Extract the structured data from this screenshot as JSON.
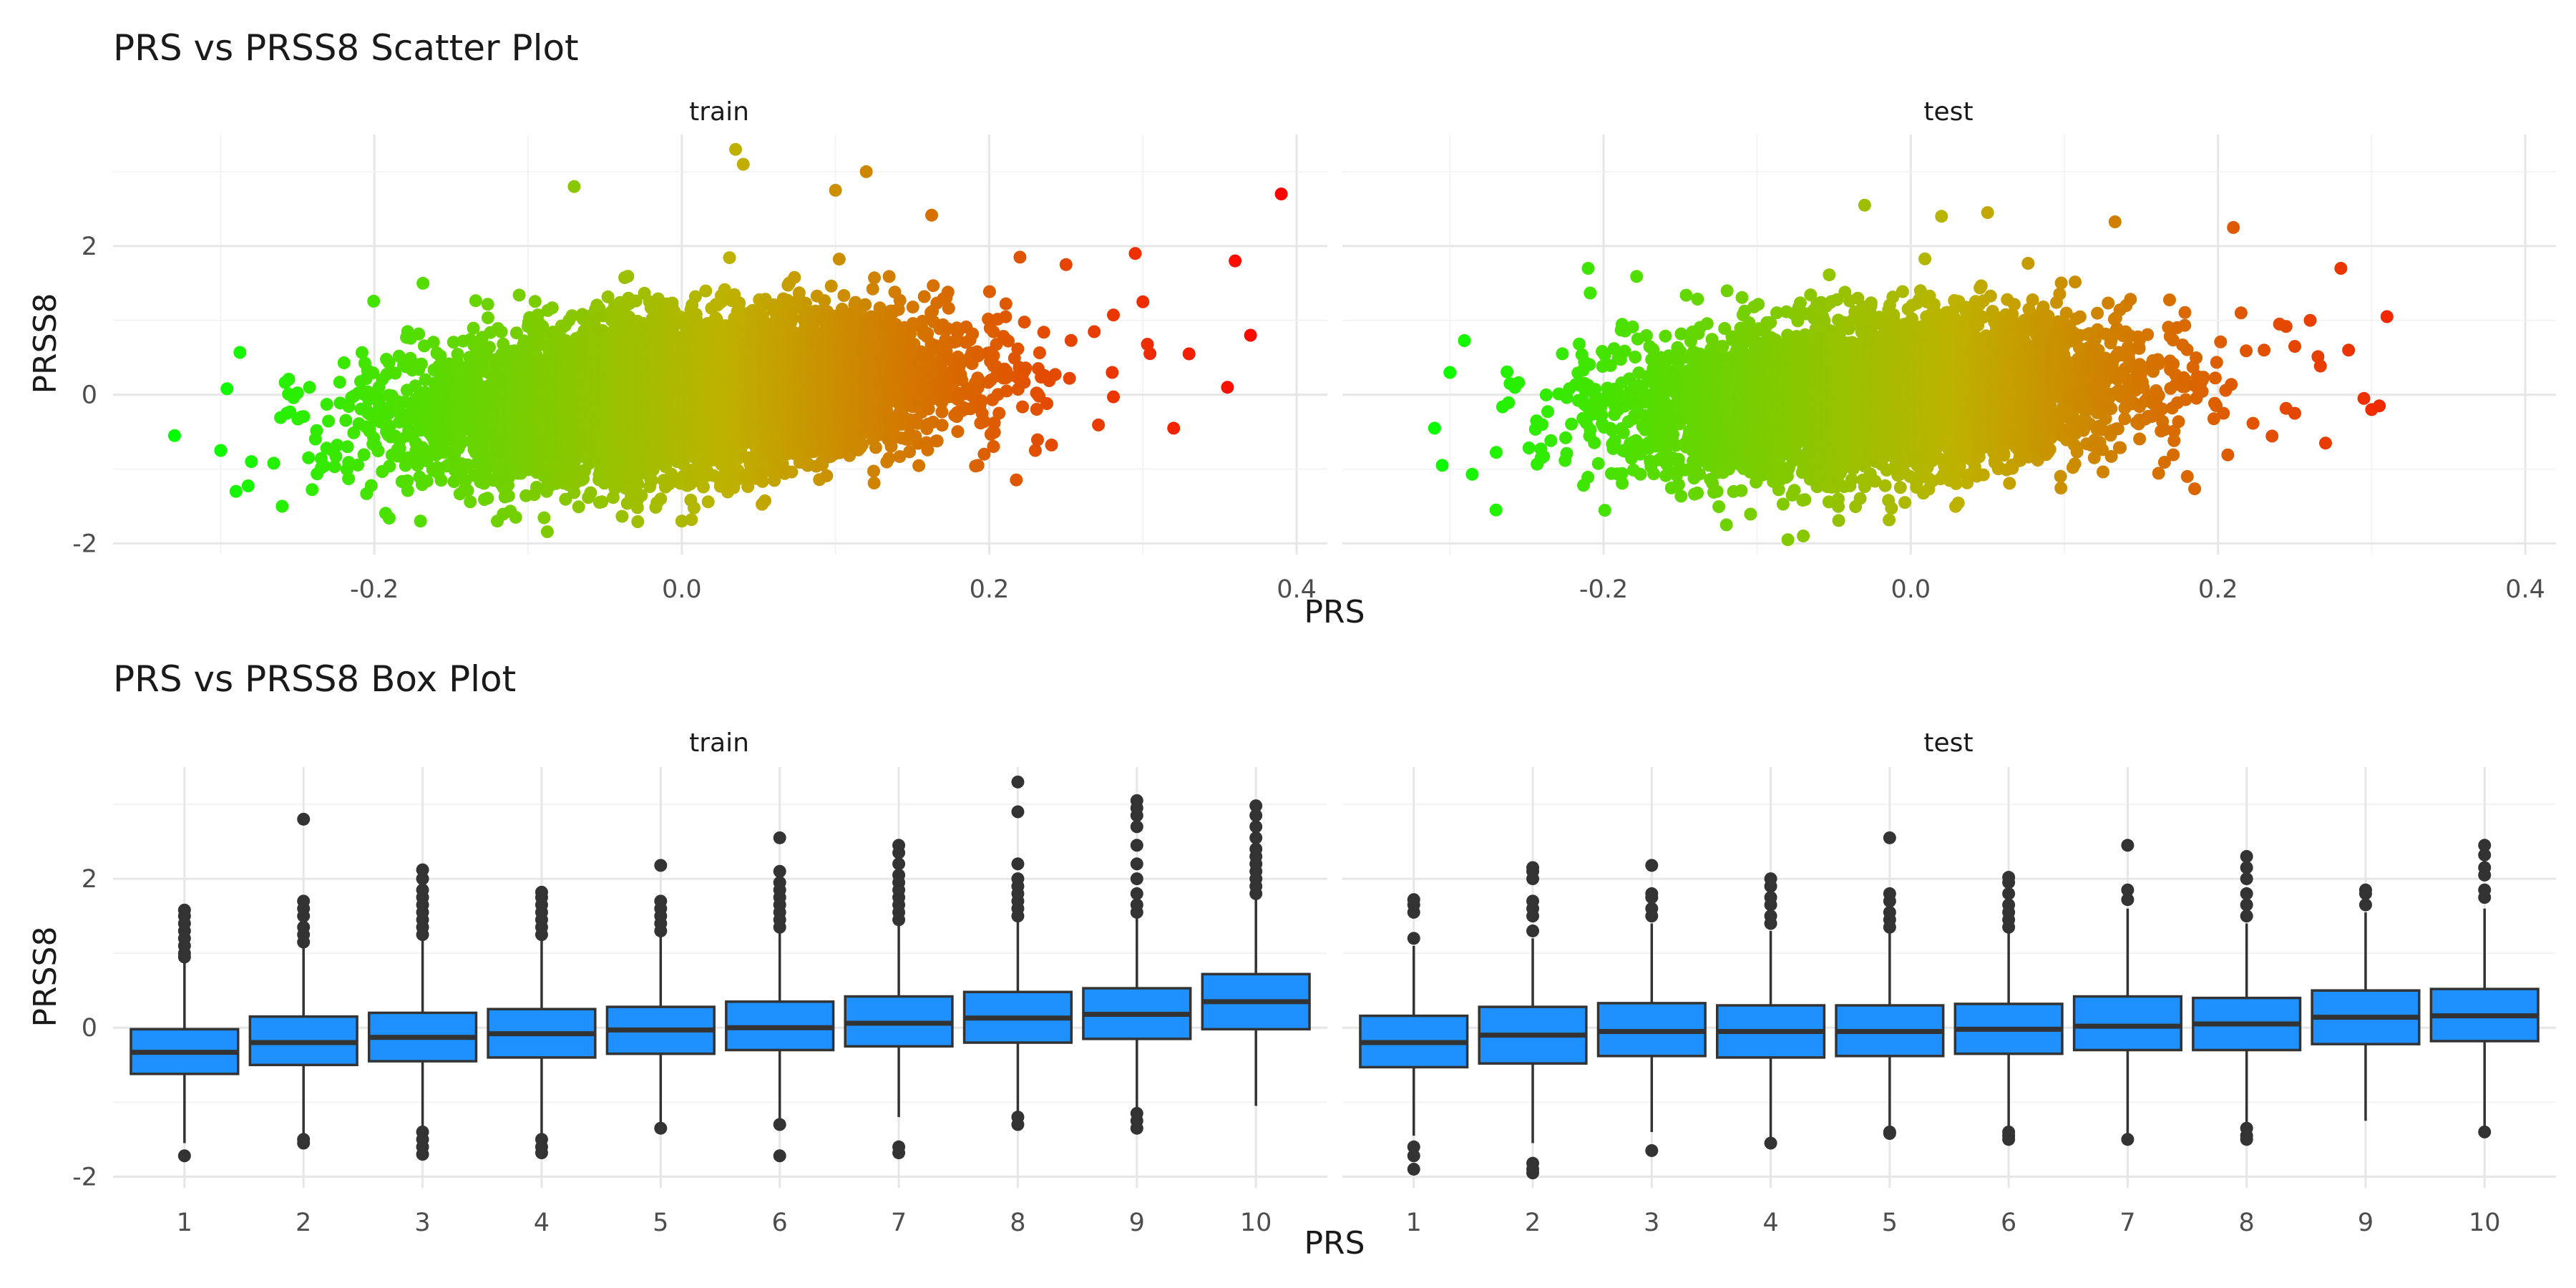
{
  "charts": {
    "scatter_title": "PRS vs PRSS8 Scatter Plot",
    "box_title": "PRS vs PRSS8 Box Plot",
    "xlabel": "PRS",
    "ylabel": "PRSS8",
    "facet_train": "train",
    "facet_test": "test"
  },
  "colors": {
    "gradient_low": "#00ff00",
    "gradient_high": "#ff0000",
    "box_fill": "#1e90ff",
    "box_line": "#333333",
    "grid": "#e6e6e6"
  },
  "chart_data": [
    {
      "type": "scatter",
      "title": "PRS vs PRSS8 Scatter Plot",
      "xlabel": "PRS",
      "ylabel": "PRSS8",
      "facets": [
        "train",
        "test"
      ],
      "xlim": [
        -0.37,
        0.42
      ],
      "ylim": [
        -2.15,
        3.5
      ],
      "x_ticks": [
        "-0.2",
        "0.0",
        "0.2",
        "0.4"
      ],
      "y_ticks": [
        "-2",
        "0",
        "2"
      ],
      "color_scale": {
        "low": "#00ff00",
        "high": "#ff0000",
        "by": "PRS"
      },
      "grid": true,
      "density": {
        "train": {
          "center_x": 0.0,
          "sd_x": 0.085,
          "center_y": 0.0,
          "slope": 4.2,
          "sd_y": 0.5
        },
        "test": {
          "center_x": -0.02,
          "sd_x": 0.08,
          "center_y": 0.0,
          "slope": 3.0,
          "sd_y": 0.5
        }
      },
      "outliers": {
        "train": [
          [
            -0.33,
            -0.55
          ],
          [
            0.39,
            2.7
          ],
          [
            0.37,
            0.8
          ],
          [
            0.36,
            1.8
          ],
          [
            0.355,
            0.1
          ],
          [
            0.33,
            0.55
          ],
          [
            0.32,
            -0.45
          ],
          [
            0.3,
            1.25
          ],
          [
            0.295,
            1.9
          ],
          [
            0.28,
            0.3
          ],
          [
            0.25,
            1.75
          ],
          [
            0.23,
            -0.75
          ],
          [
            0.22,
            1.85
          ],
          [
            0.12,
            3.0
          ],
          [
            0.035,
            3.3
          ],
          [
            0.04,
            3.1
          ],
          [
            -0.07,
            2.8
          ],
          [
            0.1,
            2.75
          ],
          [
            -0.29,
            -1.3
          ],
          [
            -0.3,
            -0.75
          ],
          [
            -0.28,
            -0.9
          ],
          [
            -0.26,
            -1.5
          ],
          [
            -0.17,
            -1.7
          ],
          [
            -0.12,
            -1.7
          ],
          [
            0.0,
            -1.7
          ]
        ],
        "test": [
          [
            -0.3,
            0.3
          ],
          [
            -0.31,
            -0.45
          ],
          [
            -0.305,
            -0.95
          ],
          [
            -0.27,
            -1.55
          ],
          [
            -0.21,
            1.7
          ],
          [
            0.21,
            2.25
          ],
          [
            0.215,
            1.1
          ],
          [
            0.28,
            1.7
          ],
          [
            0.285,
            0.6
          ],
          [
            0.31,
            1.05
          ],
          [
            0.305,
            -0.15
          ],
          [
            0.295,
            -0.05
          ],
          [
            0.3,
            -0.2
          ],
          [
            0.25,
            0.65
          ],
          [
            0.27,
            -0.65
          ],
          [
            0.24,
            0.95
          ],
          [
            0.26,
            1.0
          ],
          [
            0.23,
            0.6
          ],
          [
            0.25,
            -0.25
          ],
          [
            -0.07,
            -1.9
          ],
          [
            -0.08,
            -1.95
          ],
          [
            -0.12,
            -1.75
          ],
          [
            0.05,
            2.45
          ],
          [
            -0.03,
            2.55
          ],
          [
            0.02,
            2.4
          ],
          [
            -0.24,
            -0.4
          ],
          [
            0.18,
            -1.1
          ]
        ]
      }
    },
    {
      "type": "box",
      "title": "PRS vs PRSS8 Box Plot",
      "xlabel": "PRS",
      "ylabel": "PRSS8",
      "categories": [
        "1",
        "2",
        "3",
        "4",
        "5",
        "6",
        "7",
        "8",
        "9",
        "10"
      ],
      "ylim": [
        -2.15,
        3.5
      ],
      "y_ticks": [
        "-2",
        "0",
        "2"
      ],
      "grid": true,
      "facets": [
        {
          "name": "train",
          "boxes": [
            {
              "q1": -0.62,
              "median": -0.33,
              "q3": -0.02,
              "lower": -1.55,
              "upper": 0.9,
              "outliers": [
                -1.72,
                0.95,
                1.0,
                1.1,
                1.2,
                1.3,
                1.4,
                1.5,
                1.58
              ]
            },
            {
              "q1": -0.5,
              "median": -0.2,
              "q3": 0.15,
              "lower": -1.45,
              "upper": 1.1,
              "outliers": [
                -1.5,
                -1.55,
                1.15,
                1.25,
                1.35,
                1.5,
                1.6,
                1.7,
                2.8
              ]
            },
            {
              "q1": -0.45,
              "median": -0.13,
              "q3": 0.2,
              "lower": -1.35,
              "upper": 1.2,
              "outliers": [
                -1.4,
                -1.5,
                -1.6,
                -1.7,
                1.25,
                1.35,
                1.45,
                1.55,
                1.65,
                1.75,
                1.85,
                2.0,
                2.12
              ]
            },
            {
              "q1": -0.4,
              "median": -0.08,
              "q3": 0.25,
              "lower": -1.45,
              "upper": 1.2,
              "outliers": [
                -1.5,
                -1.6,
                -1.68,
                1.25,
                1.35,
                1.45,
                1.55,
                1.65,
                1.75,
                1.82
              ]
            },
            {
              "q1": -0.35,
              "median": -0.03,
              "q3": 0.28,
              "lower": -1.3,
              "upper": 1.25,
              "outliers": [
                -1.35,
                1.3,
                1.4,
                1.5,
                1.6,
                1.7,
                2.18
              ]
            },
            {
              "q1": -0.3,
              "median": 0.0,
              "q3": 0.35,
              "lower": -1.25,
              "upper": 1.3,
              "outliers": [
                -1.3,
                -1.72,
                1.35,
                1.45,
                1.55,
                1.65,
                1.75,
                1.85,
                1.95,
                2.1,
                2.55
              ]
            },
            {
              "q1": -0.25,
              "median": 0.06,
              "q3": 0.42,
              "lower": -1.2,
              "upper": 1.4,
              "outliers": [
                -1.6,
                -1.68,
                1.45,
                1.55,
                1.65,
                1.75,
                1.85,
                1.95,
                2.05,
                2.2,
                2.35,
                2.45
              ]
            },
            {
              "q1": -0.2,
              "median": 0.13,
              "q3": 0.48,
              "lower": -1.15,
              "upper": 1.45,
              "outliers": [
                -1.2,
                -1.3,
                1.5,
                1.6,
                1.7,
                1.8,
                1.9,
                2.0,
                2.2,
                2.9,
                3.3
              ]
            },
            {
              "q1": -0.15,
              "median": 0.18,
              "q3": 0.53,
              "lower": -1.1,
              "upper": 1.5,
              "outliers": [
                -1.15,
                -1.25,
                -1.35,
                1.55,
                1.65,
                1.8,
                2.0,
                2.2,
                2.45,
                2.7,
                2.85,
                2.95,
                3.05
              ]
            },
            {
              "q1": -0.02,
              "median": 0.35,
              "q3": 0.72,
              "lower": -1.05,
              "upper": 1.75,
              "outliers": [
                1.8,
                1.9,
                2.0,
                2.1,
                2.2,
                2.3,
                2.4,
                2.55,
                2.7,
                2.85,
                2.98
              ]
            }
          ]
        },
        {
          "name": "test",
          "boxes": [
            {
              "q1": -0.53,
              "median": -0.2,
              "q3": 0.16,
              "lower": -1.45,
              "upper": 1.1,
              "outliers": [
                -1.6,
                -1.72,
                -1.9,
                1.2,
                1.55,
                1.65,
                1.72
              ]
            },
            {
              "q1": -0.48,
              "median": -0.1,
              "q3": 0.28,
              "lower": -1.55,
              "upper": 1.2,
              "outliers": [
                -1.82,
                -1.9,
                -1.95,
                1.3,
                1.5,
                1.6,
                1.7,
                2.0,
                2.1,
                2.15
              ]
            },
            {
              "q1": -0.38,
              "median": -0.05,
              "q3": 0.33,
              "lower": -1.4,
              "upper": 1.4,
              "outliers": [
                -1.65,
                1.5,
                1.6,
                1.75,
                1.8,
                2.18
              ]
            },
            {
              "q1": -0.4,
              "median": -0.05,
              "q3": 0.3,
              "lower": -1.5,
              "upper": 1.3,
              "outliers": [
                -1.55,
                1.4,
                1.5,
                1.65,
                1.75,
                1.9,
                2.0
              ]
            },
            {
              "q1": -0.38,
              "median": -0.05,
              "q3": 0.3,
              "lower": -1.35,
              "upper": 1.3,
              "outliers": [
                -1.4,
                -1.42,
                1.35,
                1.45,
                1.55,
                1.7,
                1.8,
                2.55
              ]
            },
            {
              "q1": -0.35,
              "median": -0.02,
              "q3": 0.32,
              "lower": -1.35,
              "upper": 1.3,
              "outliers": [
                -1.4,
                -1.45,
                -1.5,
                1.35,
                1.45,
                1.55,
                1.65,
                1.8,
                1.95,
                2.02
              ]
            },
            {
              "q1": -0.3,
              "median": 0.02,
              "q3": 0.42,
              "lower": -1.45,
              "upper": 1.6,
              "outliers": [
                -1.5,
                1.72,
                1.85,
                2.45
              ]
            },
            {
              "q1": -0.3,
              "median": 0.05,
              "q3": 0.4,
              "lower": -1.3,
              "upper": 1.4,
              "outliers": [
                -1.35,
                -1.45,
                -1.5,
                1.5,
                1.65,
                1.8,
                2.0,
                2.15,
                2.3
              ]
            },
            {
              "q1": -0.22,
              "median": 0.14,
              "q3": 0.5,
              "lower": -1.25,
              "upper": 1.55,
              "outliers": [
                1.65,
                1.8,
                1.85
              ]
            },
            {
              "q1": -0.18,
              "median": 0.16,
              "q3": 0.52,
              "lower": -1.35,
              "upper": 1.6,
              "outliers": [
                -1.4,
                1.75,
                1.85,
                2.05,
                2.15,
                2.32,
                2.45
              ]
            }
          ]
        }
      ]
    }
  ]
}
